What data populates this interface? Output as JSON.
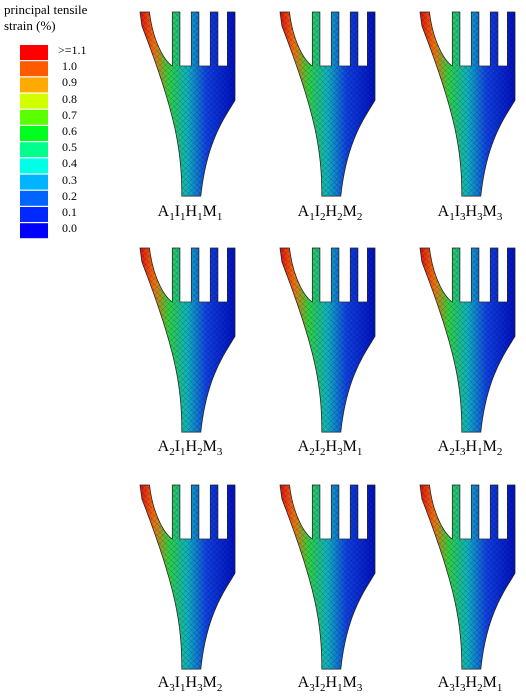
{
  "legend": {
    "title": "principal tensile strain (%)",
    "entries": [
      {
        "label": ">=1.1",
        "color": "#ff0000"
      },
      {
        "label": "1.0",
        "color": "#ff5a00"
      },
      {
        "label": "0.9",
        "color": "#ffaa00"
      },
      {
        "label": "0.8",
        "color": "#d2ff00"
      },
      {
        "label": "0.7",
        "color": "#5aff00"
      },
      {
        "label": "0.6",
        "color": "#00ff1e"
      },
      {
        "label": "0.5",
        "color": "#00ff8c"
      },
      {
        "label": "0.4",
        "color": "#00ffe6"
      },
      {
        "label": "0.3",
        "color": "#00b4ff"
      },
      {
        "label": "0.2",
        "color": "#0064ff"
      },
      {
        "label": "0.1",
        "color": "#0028ff"
      },
      {
        "label": "0.0",
        "color": "#0000ff"
      }
    ]
  },
  "panels": [
    "A1I1H1M1",
    "A1I2H2M2",
    "A1I3H3M3",
    "A2I1H2M3",
    "A2I2H3M1",
    "A2I3H1M2",
    "A3I1H3M2",
    "A3I2H1M3",
    "A3I3H2M1"
  ]
}
